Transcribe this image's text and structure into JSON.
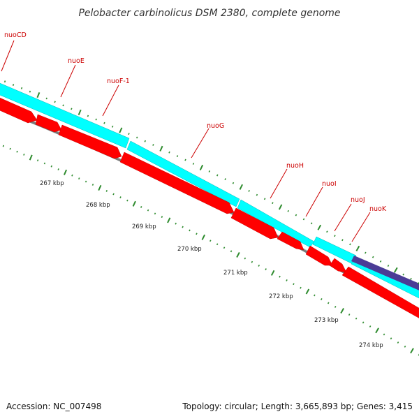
{
  "title": "Pelobacter carbinolicus DSM 2380, complete genome",
  "footer": {
    "accession": "Accession: NC_007498",
    "summary": "Topology: circular; Length: 3,665,893 bp; Genes: 3,415"
  },
  "genes": [
    {
      "name": "nuoCD",
      "label": "nuoCD"
    },
    {
      "name": "nuoE",
      "label": "nuoE"
    },
    {
      "name": "nuoF-1",
      "label": "nuoF-1"
    },
    {
      "name": "nuoG",
      "label": "nuoG"
    },
    {
      "name": "nuoH",
      "label": "nuoH"
    },
    {
      "name": "nuoI",
      "label": "nuoI"
    },
    {
      "name": "nuoJ",
      "label": "nuoJ"
    },
    {
      "name": "nuoK",
      "label": "nuoK"
    }
  ],
  "ruler": [
    "267 kbp",
    "268 kbp",
    "269 kbp",
    "270 kbp",
    "271 kbp",
    "272 kbp",
    "273 kbp",
    "274 kbp"
  ],
  "colors": {
    "cds": "#ff0000",
    "feature_outer": "#00ffff",
    "feature_outer2": "#4b3c96",
    "backbone": "#7a7a7a",
    "ticks": "#2e8b2e",
    "labels": "#cc0000"
  }
}
